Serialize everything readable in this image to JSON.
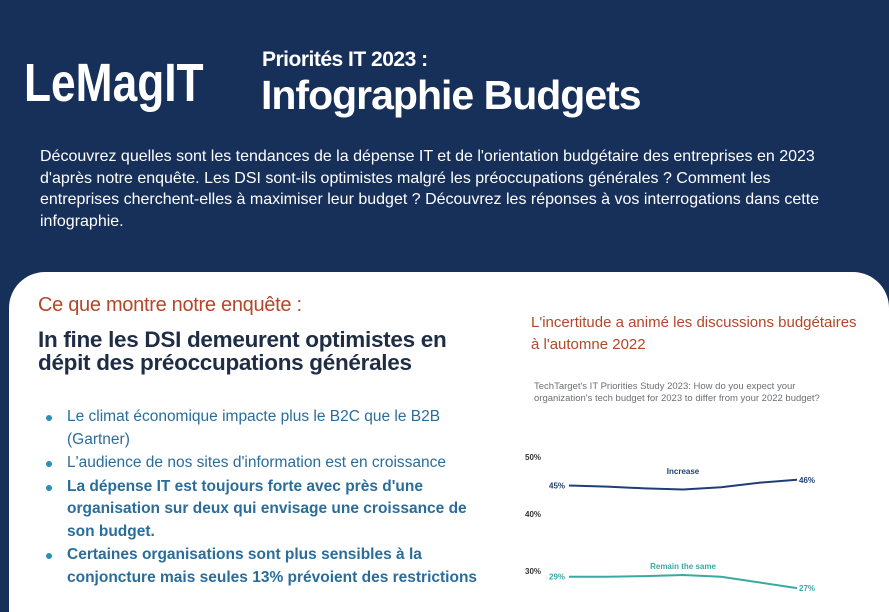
{
  "header": {
    "logo_part1": "Le",
    "logo_part2": "Mag",
    "logo_part3": "IT",
    "title_sup": "Priorités IT 2023 :",
    "title_main": "Infographie Budgets",
    "intro": "Découvrez quelles sont les tendances de la dépense IT et de l'orientation budgétaire des entreprises en 2023 d'après notre enquête. Les DSI sont-ils optimistes malgré les préoccupations générales ? Comment les entreprises cherchent-elles à maximiser leur budget ? Découvrez les réponses à vos interrogations dans cette infographie."
  },
  "section": {
    "kicker": "Ce que montre notre enquête :",
    "title": "In fine les DSI demeurent optimistes en dépit des préoccupations générales",
    "bullets": [
      {
        "text": "Le climat économique impacte plus le B2C que le B2B (Gartner)",
        "bold": false
      },
      {
        "text": "L'audience de nos sites d'information est en croissance",
        "bold": false
      },
      {
        "text": "La dépense IT est toujours forte avec près d'une organisation sur deux qui envisage une croissance de son budget.",
        "bold": true
      },
      {
        "text": "Certaines organisations sont plus sensibles à la conjoncture mais seules 13% prévoient des restrictions",
        "bold": true
      }
    ]
  },
  "chart_panel": {
    "title": "L'incertitude a animé les discussions budgétaires à l'automne 2022",
    "question": "TechTarget's IT Priorities Study 2023: How do you expect your organization's tech budget for 2023 to differ from your 2022 budget?"
  },
  "colors": {
    "background": "#17305a",
    "accent": "#b4462a",
    "bullet_text": "#2a6d9b",
    "increase_series": "#1f3f73",
    "same_series": "#3aa9a4"
  },
  "chart_data": {
    "type": "line",
    "y_ticks": [
      "50%",
      "40%",
      "30%"
    ],
    "ylim": [
      26,
      50
    ],
    "x": [
      0,
      1,
      2,
      3,
      4,
      5,
      6
    ],
    "series": [
      {
        "name": "Increase",
        "values": [
          45,
          44.8,
          44.5,
          44.3,
          44.7,
          45.5,
          46
        ],
        "start_label": "45%",
        "end_label": "46%",
        "color": "#1f3f73"
      },
      {
        "name": "Remain the same",
        "values": [
          29,
          29,
          29.1,
          29.3,
          29,
          28,
          27
        ],
        "start_label": "29%",
        "end_label": "27%",
        "color": "#3aa9a4"
      }
    ]
  }
}
